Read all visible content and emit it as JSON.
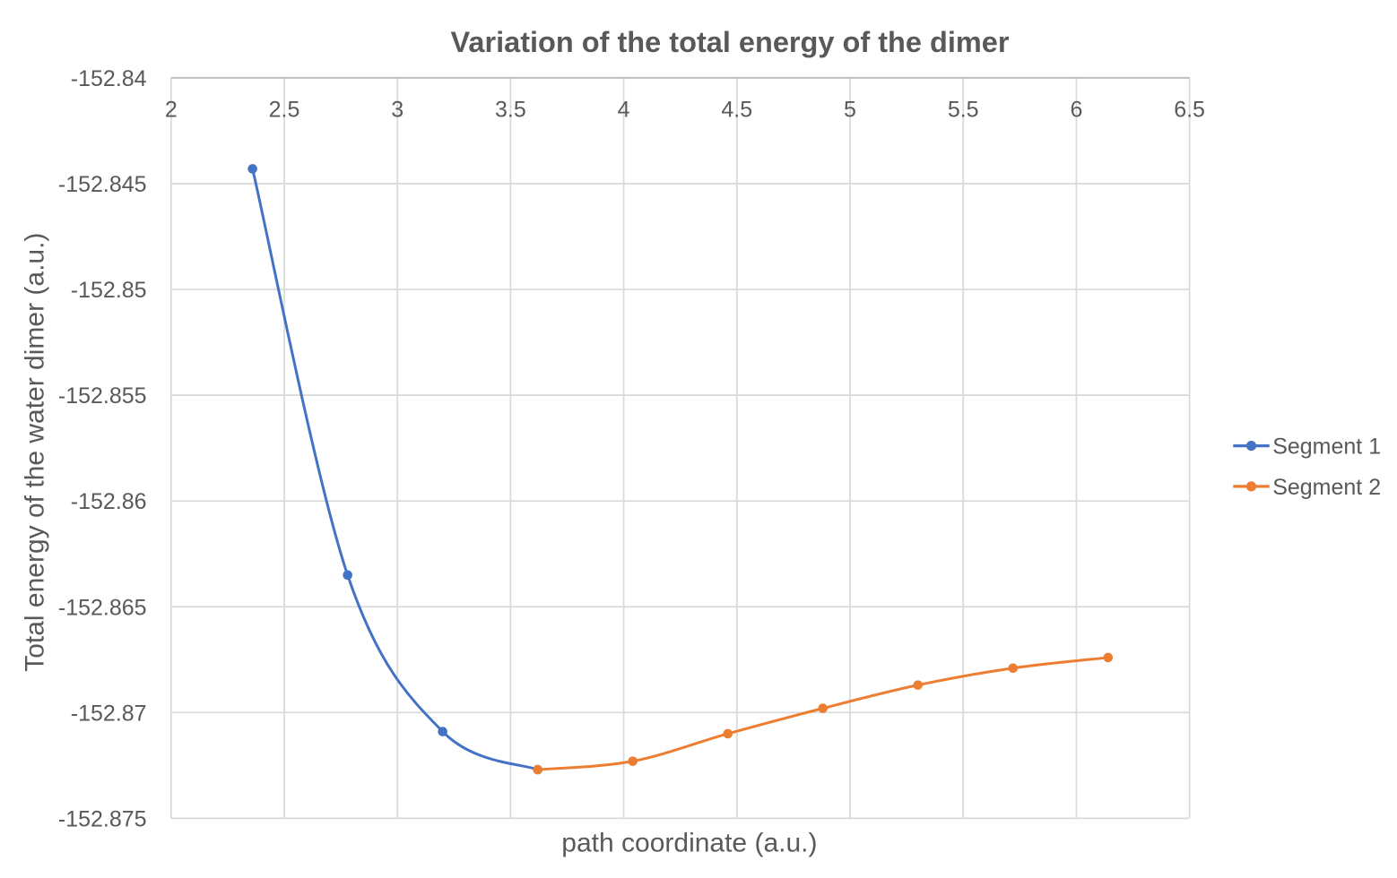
{
  "page": {
    "background": "#ffffff"
  },
  "chart_data": {
    "type": "line",
    "title": "Variation of the total energy of the dimer",
    "xlabel": "path coordinate (a.u.)",
    "ylabel": "Total energy of the water dimer (a.u.)",
    "x_axis": {
      "min": 2,
      "max": 6.5,
      "step": 0.5,
      "tick_labels": [
        "2",
        "2.5",
        "3",
        "3.5",
        "4",
        "4.5",
        "5",
        "5.5",
        "6",
        "6.5"
      ],
      "labels_position": "below top axis line"
    },
    "y_axis": {
      "min": -152.875,
      "max": -152.84,
      "step": 0.005,
      "tick_labels": [
        "-152.84",
        "-152.845",
        "-152.85",
        "-152.855",
        "-152.86",
        "-152.865",
        "-152.87",
        "-152.875"
      ]
    },
    "grid": true,
    "legend": {
      "position": "right",
      "entries": [
        {
          "label": "Segment 1",
          "color": "#4472C4"
        },
        {
          "label": "Segment 2",
          "color": "#ED7D31"
        }
      ]
    },
    "series": [
      {
        "name": "Segment 1",
        "color": "#4472C4",
        "smooth": true,
        "marker": "circle",
        "points": [
          [
            2.36,
            -152.8443
          ],
          [
            2.78,
            -152.8635
          ],
          [
            3.2,
            -152.8709
          ],
          [
            3.62,
            -152.8727
          ]
        ]
      },
      {
        "name": "Segment 2",
        "color": "#ED7D31",
        "smooth": true,
        "marker": "circle",
        "points": [
          [
            3.62,
            -152.8727
          ],
          [
            4.04,
            -152.8723
          ],
          [
            4.46,
            -152.871
          ],
          [
            4.88,
            -152.8698
          ],
          [
            5.3,
            -152.8687
          ],
          [
            5.72,
            -152.8679
          ],
          [
            6.14,
            -152.8674
          ]
        ]
      }
    ]
  },
  "style": {
    "text_color": "#595959",
    "grid_color": "#D9D9D9",
    "axis_line_color": "#BFBFBF"
  }
}
